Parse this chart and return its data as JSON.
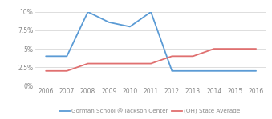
{
  "years": [
    2006,
    2007,
    2008,
    2009,
    2010,
    2011,
    2012,
    2013,
    2014,
    2015,
    2016
  ],
  "blue_values": [
    0.04,
    0.04,
    0.1,
    0.086,
    0.08,
    0.1,
    0.02,
    0.02,
    0.02,
    0.02,
    0.02
  ],
  "red_values": [
    0.02,
    0.02,
    0.03,
    0.03,
    0.03,
    0.03,
    0.04,
    0.04,
    0.05,
    0.05,
    0.05
  ],
  "blue_color": "#5B9BD5",
  "red_color": "#E07070",
  "ylim": [
    0,
    0.1
  ],
  "yticks": [
    0.0,
    0.025,
    0.05,
    0.075,
    0.1
  ],
  "ytick_labels": [
    "0%",
    "2.5%",
    "5%",
    "7.5%",
    "10%"
  ],
  "legend_blue": "Gorman School @ Jackson Center",
  "legend_red": "(OH) State Average",
  "background_color": "#ffffff",
  "grid_color": "#d8d8d8",
  "line_width": 1.3,
  "tick_fontsize": 5.5,
  "legend_fontsize": 5.2
}
